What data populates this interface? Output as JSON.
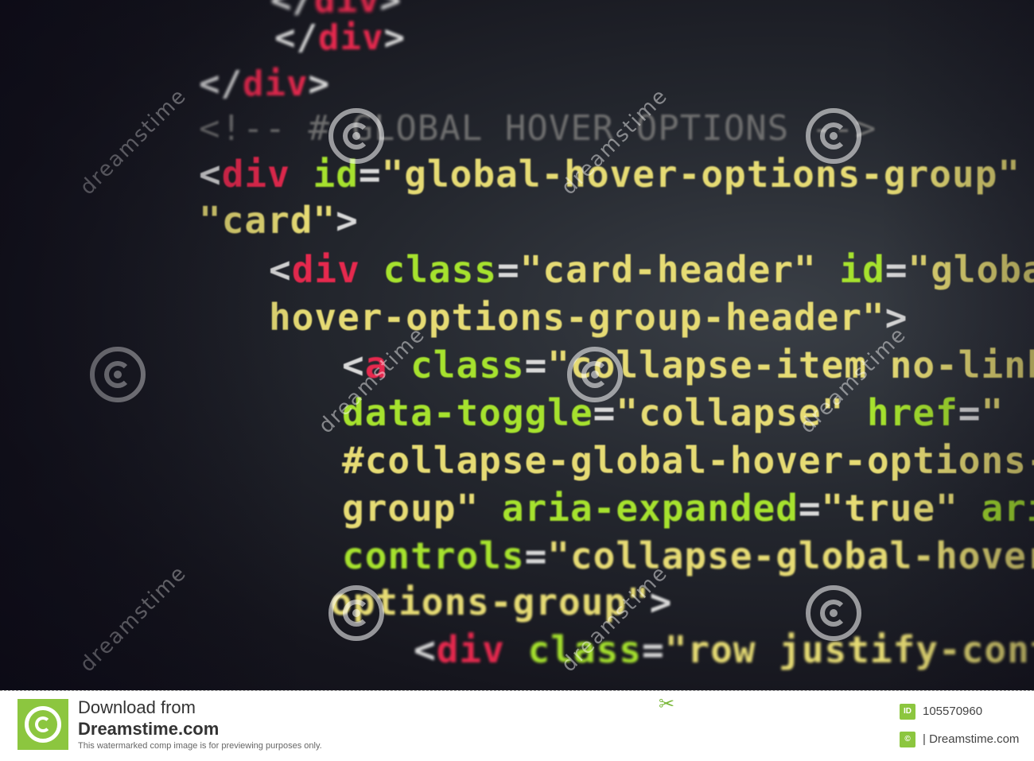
{
  "code_lines": [
    "        </div>",
    "    </div>",
    "    <!-- # GLOBAL HOVER OPTIONS -->",
    "    <div id=\"global-hover-options-group\" cla",
    "    \"card\">",
    "        <div class=\"card-header\" id=\"global-",
    "        hover-options-group-header\">",
    "            <a class=\"collapse-item no-link\"",
    "            data-toggle=\"collapse\" href=\"",
    "            #collapse-global-hover-options-",
    "            group\" aria-expanded=\"true\" aria-",
    "            controls=\"collapse-global-hover-",
    "            options-group\">",
    "                <div class=\"row justify-conte"
  ],
  "watermark": {
    "brand": "dreamstime"
  },
  "footer": {
    "download_from": "Download from",
    "site": "Dreamstime.com",
    "note": "This watermarked comp image is for previewing purposes only.",
    "id_label": "ID",
    "id_value": "105570960",
    "copyright_label": "©",
    "copyright_text": "| Dreamstime.com"
  },
  "colors": {
    "tag": "#d8d8d8",
    "tag_name": "#e6294e",
    "attribute": "#a6e22e",
    "string": "#e6db74",
    "comment": "#6f6f6f",
    "brand_green": "#8cc63f"
  }
}
